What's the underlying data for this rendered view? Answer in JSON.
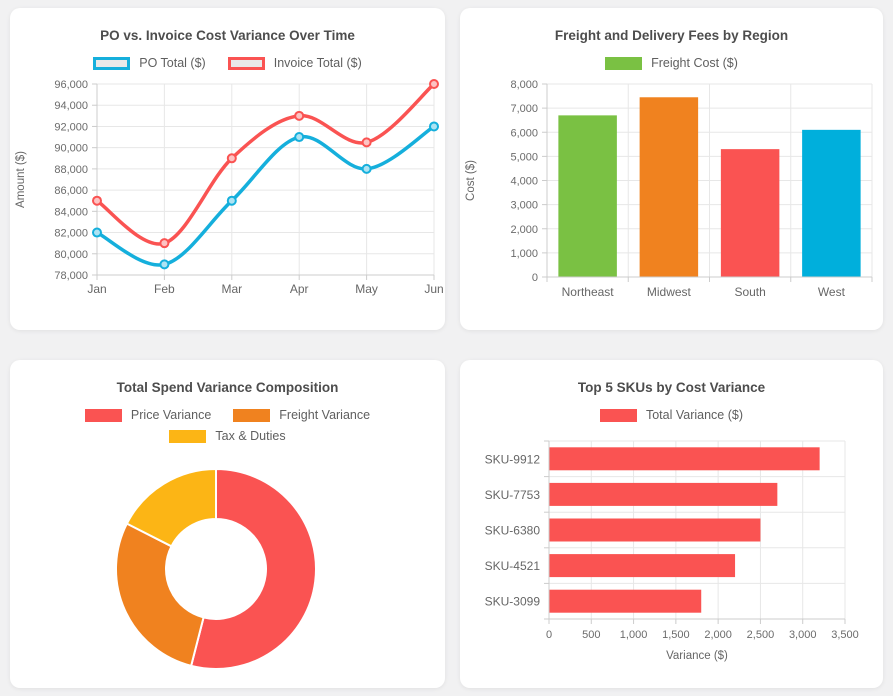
{
  "chart_data": [
    {
      "id": "po-invoice-line",
      "type": "line",
      "title": "PO vs. Invoice Cost Variance Over Time",
      "x": [
        "Jan",
        "Feb",
        "Mar",
        "Apr",
        "May",
        "Jun"
      ],
      "series": [
        {
          "name": "PO Total ($)",
          "color": "#15AFDC",
          "values": [
            82000,
            79000,
            85000,
            91000,
            88000,
            92000
          ]
        },
        {
          "name": "Invoice Total ($)",
          "color": "#FA5352",
          "values": [
            85000,
            81000,
            89000,
            93000,
            90500,
            96000
          ]
        }
      ],
      "xlabel": "",
      "ylabel": "Amount ($)",
      "ylim": [
        78000,
        96000
      ],
      "ytick_step": 2000,
      "grid": true,
      "legend_position": "top",
      "legend_style": "outline"
    },
    {
      "id": "freight-by-region",
      "type": "bar",
      "title": "Freight and Delivery Fees by Region",
      "categories": [
        "Northeast",
        "Midwest",
        "South",
        "West"
      ],
      "series": [
        {
          "name": "Freight Cost ($)",
          "color": "#7AC143",
          "values": [
            6700,
            7450,
            5300,
            6100
          ]
        }
      ],
      "bar_colors": [
        "#7AC143",
        "#F0821F",
        "#FA5352",
        "#00AFDC"
      ],
      "xlabel": "",
      "ylabel": "Cost ($)",
      "ylim": [
        0,
        8000
      ],
      "ytick_step": 1000,
      "grid": true,
      "legend_position": "top",
      "legend_style": "solid"
    },
    {
      "id": "spend-variance-donut",
      "type": "pie",
      "title": "Total Spend Variance Composition",
      "labels": [
        "Price Variance",
        "Freight Variance",
        "Tax & Duties"
      ],
      "values": [
        5400,
        2850,
        1750
      ],
      "colors": [
        "#FA5352",
        "#F0821F",
        "#FCB515"
      ],
      "donut_cutout": "50%",
      "legend_position": "top",
      "legend_style": "solid"
    },
    {
      "id": "top-skus-hbar",
      "type": "bar",
      "orientation": "horizontal",
      "title": "Top 5 SKUs by Cost Variance",
      "categories": [
        "SKU-9912",
        "SKU-7753",
        "SKU-6380",
        "SKU-4521",
        "SKU-3099"
      ],
      "series": [
        {
          "name": "Total Variance ($)",
          "color": "#FA5352",
          "values": [
            3200,
            2700,
            2500,
            2200,
            1800
          ]
        }
      ],
      "xlabel": "Variance ($)",
      "ylabel": "",
      "xlim": [
        0,
        3500
      ],
      "xtick_step": 500,
      "grid": true,
      "legend_position": "top",
      "legend_style": "solid"
    }
  ],
  "theme": {
    "page_background": "#F1F1F2",
    "card_background": "#FFFFFF",
    "grid_color": "#E7E7E7",
    "axis_color": "#CCCCCC",
    "tick_text_color": "#6B6B6B",
    "title_text_color": "#4D4D4D"
  }
}
